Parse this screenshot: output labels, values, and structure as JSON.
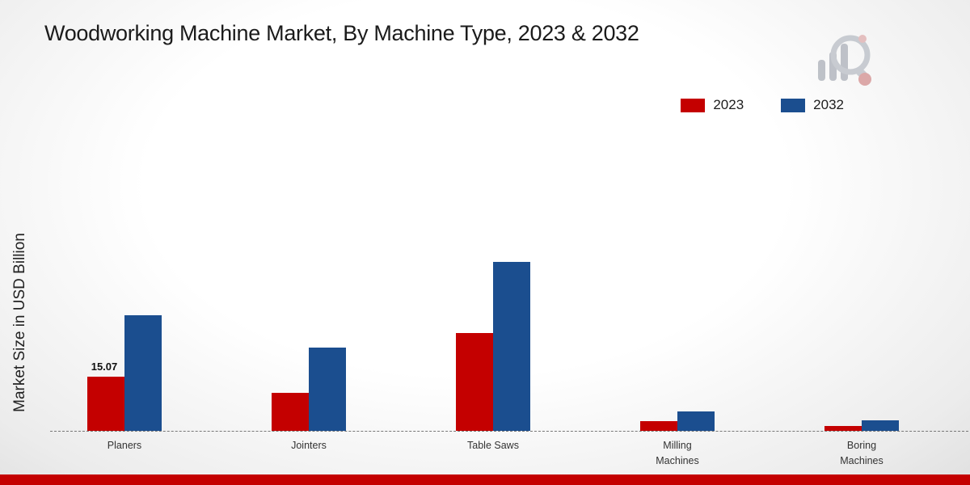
{
  "title": "Woodworking Machine Market, By Machine Type, 2023 & 2032",
  "accent_colors": {
    "red": "#c40000",
    "blue": "#1b4e8f",
    "footer": "#c40000"
  },
  "chart_data": {
    "type": "bar",
    "title": "Woodworking Machine Market, By Machine Type, 2023 & 2032",
    "xlabel": "",
    "ylabel": "Market Size in USD Billion",
    "ylim": [
      0,
      50
    ],
    "grid": false,
    "legend_position": "top-right",
    "categories": [
      "Planers",
      "Jointers",
      "Table Saws",
      "Milling Machines",
      "Boring Machines"
    ],
    "categories_display": [
      "Planers",
      "Jointers",
      "Table Saws",
      "Milling\nMachines",
      "Boring\nMachines"
    ],
    "series": [
      {
        "name": "2023",
        "color": "#c40000",
        "values": [
          15.07,
          10.6,
          27.3,
          2.6,
          1.4
        ]
      },
      {
        "name": "2032",
        "color": "#1b4e8f",
        "values": [
          32.1,
          23.2,
          47.0,
          5.3,
          3.0
        ]
      }
    ],
    "data_labels": [
      {
        "series_index": 0,
        "category_index": 0,
        "text": "15.07"
      }
    ]
  }
}
